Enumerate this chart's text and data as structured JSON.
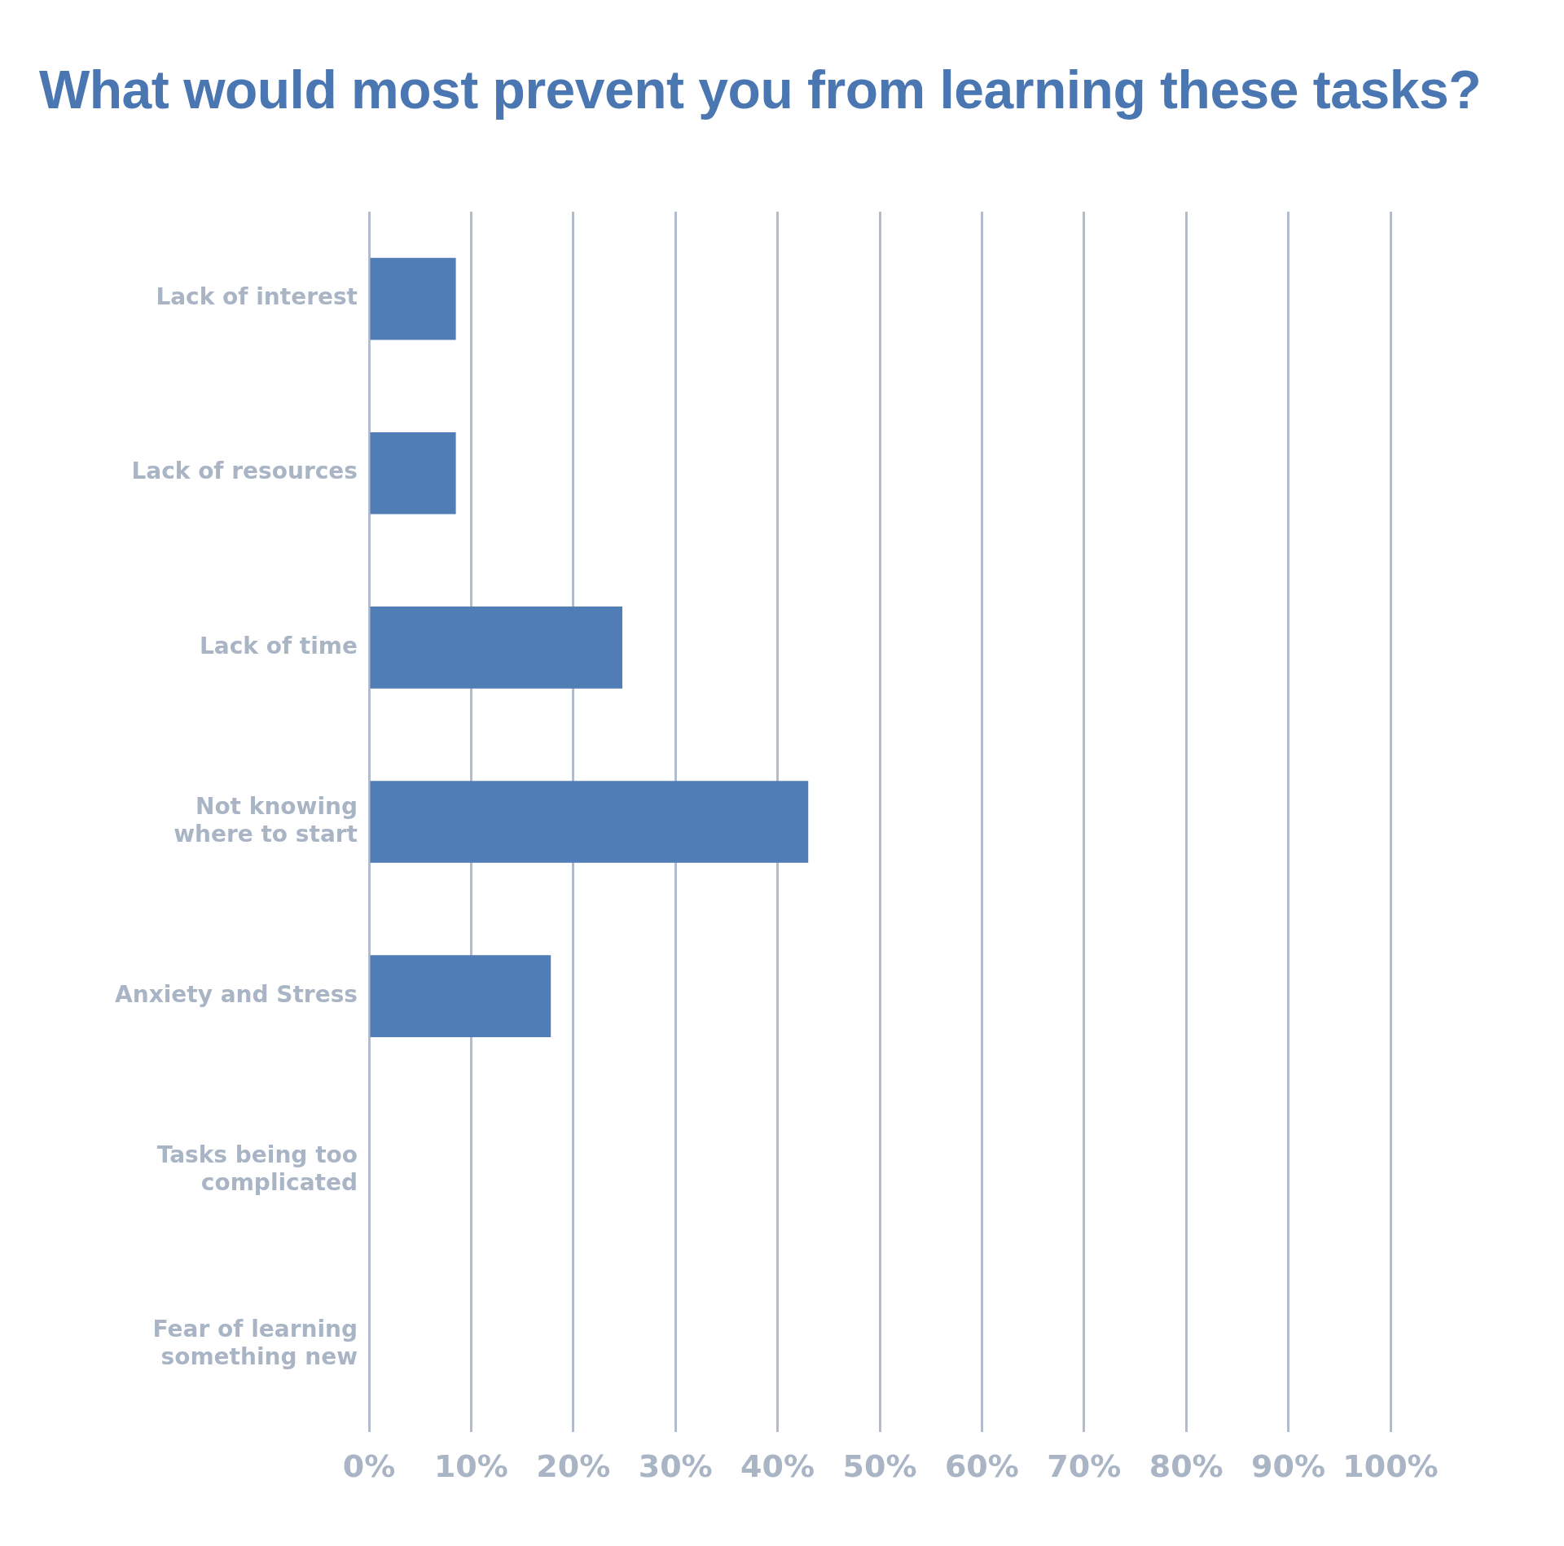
{
  "chart_data": {
    "type": "bar",
    "orientation": "horizontal",
    "title": "What would most prevent you from learning these tasks?",
    "categories": [
      "Lack of interest",
      "Lack of resources",
      "Lack of time",
      "Not knowing\nwhere to start",
      "Anxiety and Stress",
      "Tasks being too\ncomplicated",
      "Fear of learning\nsomething new"
    ],
    "values": [
      8.5,
      8.5,
      24.8,
      43,
      17.8,
      0,
      0
    ],
    "color": "#507db5",
    "xlim": [
      0,
      100
    ],
    "xticks": [
      {
        "value": 0,
        "label": "0%"
      },
      {
        "value": 10,
        "label": "10%"
      },
      {
        "value": 20,
        "label": "20%"
      },
      {
        "value": 30,
        "label": "30%"
      },
      {
        "value": 40,
        "label": "40%"
      },
      {
        "value": 50,
        "label": "50%"
      },
      {
        "value": 60,
        "label": "60%"
      },
      {
        "value": 70,
        "label": "70%"
      },
      {
        "value": 80,
        "label": "80%"
      },
      {
        "value": 90,
        "label": "90%"
      },
      {
        "value": 100,
        "label": "100%"
      }
    ],
    "grid": "x",
    "legend": false
  }
}
